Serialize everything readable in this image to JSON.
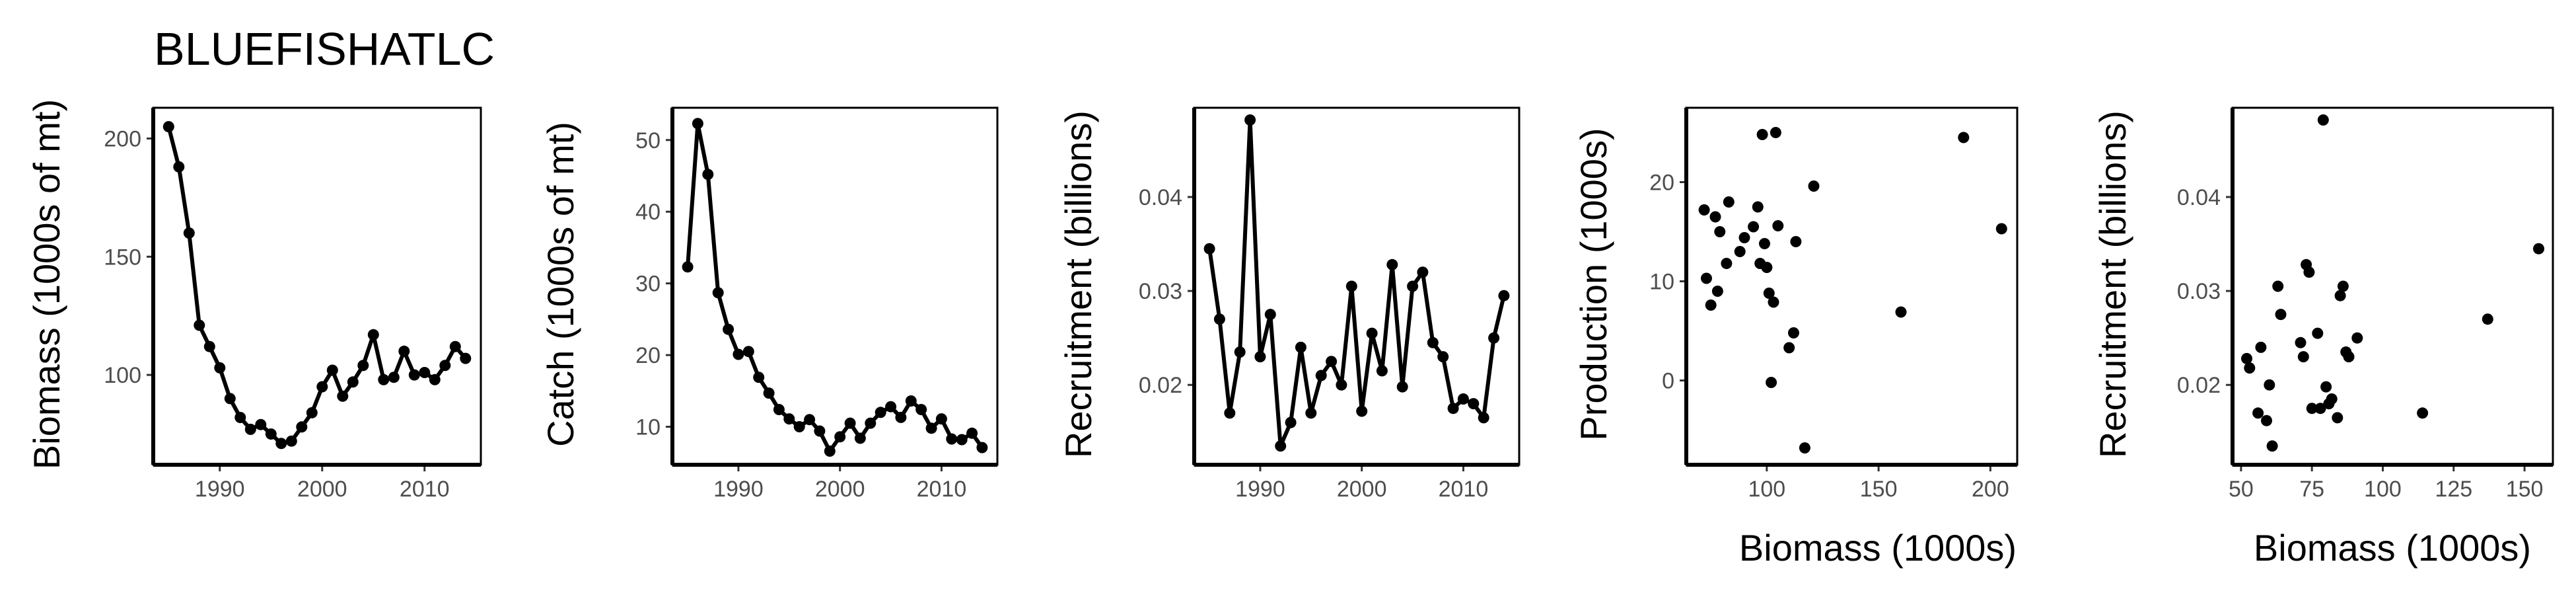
{
  "title": "BLUEFISHATLC",
  "chart_data": [
    {
      "type": "line",
      "xlabel": "",
      "ylabel": "Biomass (1000s of mt)",
      "xlim": [
        1983.5,
        2015.5
      ],
      "ylim": [
        62,
        213
      ],
      "xticks": [
        1990,
        2000,
        2010
      ],
      "yticks": [
        100,
        150,
        200
      ],
      "x": [
        1985,
        1986,
        1987,
        1988,
        1989,
        1990,
        1991,
        1992,
        1993,
        1994,
        1995,
        1996,
        1997,
        1998,
        1999,
        2000,
        2001,
        2002,
        2003,
        2004,
        2005,
        2006,
        2007,
        2008,
        2009,
        2010,
        2011,
        2012,
        2013,
        2014
      ],
      "y": [
        205,
        188,
        160,
        121,
        112,
        103,
        90,
        82,
        77,
        79,
        75,
        71,
        72,
        78,
        84,
        95,
        102,
        91,
        97,
        104,
        117,
        98,
        99,
        110,
        100,
        101,
        98,
        104,
        112,
        107
      ]
    },
    {
      "type": "line",
      "xlabel": "",
      "ylabel": "Catch (1000s of mt)",
      "xlim": [
        1983.5,
        2015.5
      ],
      "ylim": [
        4.7,
        54.5
      ],
      "xticks": [
        1990,
        2000,
        2010
      ],
      "yticks": [
        10,
        20,
        30,
        40,
        50
      ],
      "x": [
        1985,
        1986,
        1987,
        1988,
        1989,
        1990,
        1991,
        1992,
        1993,
        1994,
        1995,
        1996,
        1997,
        1998,
        1999,
        2000,
        2001,
        2002,
        2003,
        2004,
        2005,
        2006,
        2007,
        2008,
        2009,
        2010,
        2011,
        2012,
        2013,
        2014
      ],
      "y": [
        32.3,
        52.3,
        45.2,
        28.7,
        23.6,
        20.1,
        20.5,
        16.9,
        14.7,
        12.4,
        11.1,
        10.0,
        11.0,
        9.4,
        6.6,
        8.6,
        10.5,
        8.4,
        10.5,
        12.0,
        12.8,
        11.3,
        13.6,
        12.4,
        9.8,
        11.1,
        8.3,
        8.2,
        9.1,
        7.1
      ]
    },
    {
      "type": "line",
      "xlabel": "",
      "ylabel": "Recruitment (billions)",
      "xlim": [
        1983.5,
        2015.5
      ],
      "ylim": [
        0.0115,
        0.0495
      ],
      "xticks": [
        1990,
        2000,
        2010
      ],
      "yticks": [
        0.02,
        0.03,
        0.04
      ],
      "x": [
        1985,
        1986,
        1987,
        1988,
        1989,
        1990,
        1991,
        1992,
        1993,
        1994,
        1995,
        1996,
        1997,
        1998,
        1999,
        2000,
        2001,
        2002,
        2003,
        2004,
        2005,
        2006,
        2007,
        2008,
        2009,
        2010,
        2011,
        2012,
        2013,
        2014
      ],
      "y": [
        0.0345,
        0.027,
        0.017,
        0.0235,
        0.0482,
        0.023,
        0.0275,
        0.0135,
        0.016,
        0.024,
        0.017,
        0.021,
        0.0225,
        0.02,
        0.0305,
        0.0172,
        0.0255,
        0.0215,
        0.0328,
        0.0198,
        0.0305,
        0.032,
        0.0245,
        0.023,
        0.0175,
        0.0185,
        0.018,
        0.0165,
        0.025,
        0.0295
      ]
    },
    {
      "type": "scatter",
      "xlabel": "Biomass (1000s)",
      "ylabel": "Production (1000s)",
      "xlim": [
        64,
        212
      ],
      "ylim": [
        -8.5,
        27.5
      ],
      "xticks": [
        100,
        150,
        200
      ],
      "yticks": [
        0,
        10,
        20
      ],
      "points": [
        [
          72,
          17.2
        ],
        [
          73,
          10.3
        ],
        [
          75,
          7.6
        ],
        [
          77,
          16.5
        ],
        [
          78,
          9.0
        ],
        [
          79,
          15.0
        ],
        [
          82,
          11.8
        ],
        [
          83,
          18.0
        ],
        [
          88,
          13.0
        ],
        [
          90,
          14.4
        ],
        [
          94,
          15.5
        ],
        [
          96,
          17.5
        ],
        [
          97,
          11.8
        ],
        [
          98,
          24.8
        ],
        [
          99,
          13.8
        ],
        [
          100,
          11.4
        ],
        [
          101,
          8.8
        ],
        [
          102,
          -0.2
        ],
        [
          103,
          7.9
        ],
        [
          104,
          25.0
        ],
        [
          105,
          15.6
        ],
        [
          110,
          3.3
        ],
        [
          112,
          4.8
        ],
        [
          113,
          14.0
        ],
        [
          117,
          -6.8
        ],
        [
          121,
          19.6
        ],
        [
          160,
          6.9
        ],
        [
          188,
          24.5
        ],
        [
          205,
          15.3
        ]
      ]
    },
    {
      "type": "scatter",
      "xlabel": "Biomass (1000s)",
      "ylabel": "Recruitment (billions)",
      "xlim": [
        47,
        160
      ],
      "ylim": [
        0.0115,
        0.0495
      ],
      "xticks": [
        50,
        75,
        100,
        125,
        150
      ],
      "yticks": [
        0.02,
        0.03,
        0.04
      ],
      "points": [
        [
          52,
          0.0228
        ],
        [
          53,
          0.0218
        ],
        [
          56,
          0.017
        ],
        [
          57,
          0.024
        ],
        [
          59,
          0.0162
        ],
        [
          60,
          0.02
        ],
        [
          61,
          0.0135
        ],
        [
          63,
          0.0305
        ],
        [
          64,
          0.0275
        ],
        [
          71,
          0.0245
        ],
        [
          72,
          0.023
        ],
        [
          73,
          0.0328
        ],
        [
          74,
          0.032
        ],
        [
          75,
          0.0175
        ],
        [
          77,
          0.0255
        ],
        [
          78,
          0.0175
        ],
        [
          79,
          0.0482
        ],
        [
          80,
          0.0198
        ],
        [
          81,
          0.018
        ],
        [
          82,
          0.0185
        ],
        [
          84,
          0.0165
        ],
        [
          85,
          0.0295
        ],
        [
          86,
          0.0305
        ],
        [
          87,
          0.0235
        ],
        [
          88,
          0.023
        ],
        [
          91,
          0.025
        ],
        [
          114,
          0.017
        ],
        [
          137,
          0.027
        ],
        [
          155,
          0.0345
        ]
      ]
    }
  ]
}
